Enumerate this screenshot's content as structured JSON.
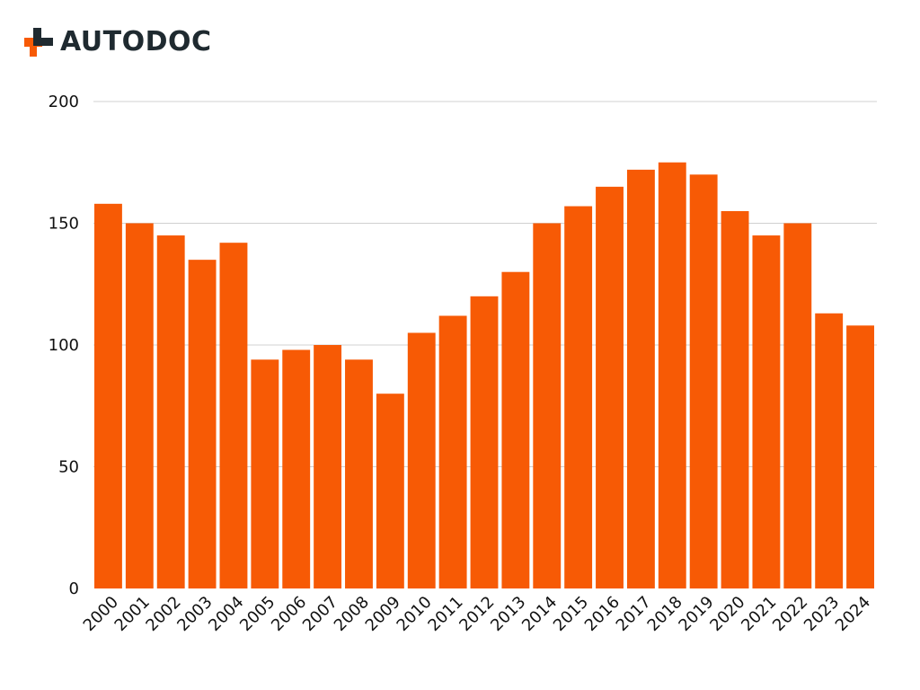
{
  "brand": {
    "name": "AUTODOC",
    "text_color": "#1f2a30",
    "accent_color": "#f75a05"
  },
  "chart_data": {
    "type": "bar",
    "title": "",
    "xlabel": "",
    "ylabel": "",
    "categories": [
      "2000",
      "2001",
      "2002",
      "2003",
      "2004",
      "2005",
      "2006",
      "2007",
      "2008",
      "2009",
      "2010",
      "2011",
      "2012",
      "2013",
      "2014",
      "2015",
      "2016",
      "2017",
      "2018",
      "2019",
      "2020",
      "2021",
      "2022",
      "2023",
      "2024"
    ],
    "values": [
      158,
      150,
      145,
      135,
      142,
      94,
      98,
      100,
      94,
      80,
      105,
      112,
      120,
      130,
      150,
      157,
      165,
      172,
      175,
      170,
      155,
      145,
      150,
      113,
      108
    ],
    "ylim": [
      0,
      200
    ],
    "yticks": [
      0,
      50,
      100,
      150,
      200
    ],
    "grid": true,
    "bar_color": "#f75a05",
    "grid_color": "#d0d0d0",
    "legend": "none"
  }
}
